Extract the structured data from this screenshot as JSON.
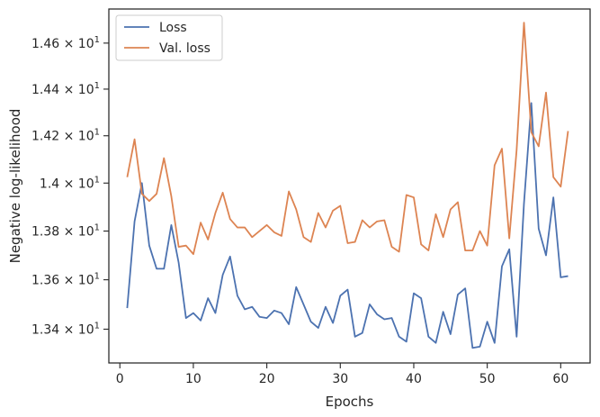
{
  "chart_data": {
    "type": "line",
    "xlabel": "Epochs",
    "ylabel": "Negative log-likelihood",
    "xlim": [
      -1.5,
      64
    ],
    "ylim": [
      13.265,
      14.75
    ],
    "yscale": "log",
    "xticks": [
      0,
      10,
      20,
      30,
      40,
      50,
      60
    ],
    "yticks": [
      13.4,
      13.6,
      13.8,
      14.0,
      14.2,
      14.4,
      14.6
    ],
    "ytick_labels": [
      {
        "mantissa": "1.34",
        "exp": "1"
      },
      {
        "mantissa": "1.36",
        "exp": "1"
      },
      {
        "mantissa": "1.38",
        "exp": "1"
      },
      {
        "mantissa": "1.4",
        "exp": "1"
      },
      {
        "mantissa": "1.42",
        "exp": "1"
      },
      {
        "mantissa": "1.44",
        "exp": "1"
      },
      {
        "mantissa": "1.46",
        "exp": "1"
      }
    ],
    "ytick_times": "×",
    "ytick_base": "10",
    "grid": false,
    "legend_position": "top-left",
    "series": [
      {
        "name": "Loss",
        "color": "#4c72b0",
        "x": [
          1,
          2,
          3,
          4,
          5,
          6,
          7,
          8,
          9,
          10,
          11,
          12,
          13,
          14,
          15,
          16,
          17,
          18,
          19,
          20,
          21,
          22,
          23,
          24,
          25,
          26,
          27,
          28,
          29,
          30,
          31,
          32,
          33,
          34,
          35,
          36,
          37,
          38,
          39,
          40,
          41,
          42,
          43,
          44,
          45,
          46,
          47,
          48,
          49,
          50,
          51,
          52,
          53,
          54,
          55,
          56,
          57,
          58,
          59,
          60,
          61
        ],
        "y": [
          13.485,
          13.84,
          14.0,
          13.74,
          13.645,
          13.645,
          13.825,
          13.67,
          13.445,
          13.465,
          13.435,
          13.525,
          13.465,
          13.62,
          13.695,
          13.535,
          13.48,
          13.49,
          13.45,
          13.445,
          13.475,
          13.465,
          13.42,
          13.57,
          13.5,
          13.43,
          13.405,
          13.49,
          13.425,
          13.535,
          13.56,
          13.37,
          13.385,
          13.5,
          13.46,
          13.44,
          13.445,
          13.37,
          13.35,
          13.545,
          13.525,
          13.37,
          13.345,
          13.47,
          13.38,
          13.54,
          13.565,
          13.325,
          13.33,
          13.43,
          13.345,
          13.655,
          13.725,
          13.37,
          13.915,
          14.34,
          13.81,
          13.7,
          13.94,
          13.61,
          13.615
        ]
      },
      {
        "name": "Val. loss",
        "color": "#dd8452",
        "x": [
          1,
          2,
          3,
          4,
          5,
          6,
          7,
          8,
          9,
          10,
          11,
          12,
          13,
          14,
          15,
          16,
          17,
          18,
          19,
          20,
          21,
          22,
          23,
          24,
          25,
          26,
          27,
          28,
          29,
          30,
          31,
          32,
          33,
          34,
          35,
          36,
          37,
          38,
          39,
          40,
          41,
          42,
          43,
          44,
          45,
          46,
          47,
          48,
          49,
          50,
          51,
          52,
          53,
          54,
          55,
          56,
          57,
          58,
          59,
          60,
          61
        ],
        "y": [
          14.025,
          14.185,
          13.955,
          13.925,
          13.955,
          14.105,
          13.945,
          13.735,
          13.74,
          13.705,
          13.835,
          13.765,
          13.875,
          13.96,
          13.85,
          13.815,
          13.815,
          13.775,
          13.8,
          13.825,
          13.795,
          13.78,
          13.965,
          13.89,
          13.775,
          13.755,
          13.875,
          13.815,
          13.885,
          13.905,
          13.75,
          13.755,
          13.845,
          13.815,
          13.84,
          13.845,
          13.735,
          13.715,
          13.95,
          13.94,
          13.745,
          13.72,
          13.87,
          13.775,
          13.89,
          13.92,
          13.72,
          13.72,
          13.8,
          13.74,
          14.075,
          14.145,
          13.77,
          14.14,
          14.69,
          14.215,
          14.155,
          14.385,
          14.025,
          13.985,
          14.22
        ]
      }
    ]
  }
}
